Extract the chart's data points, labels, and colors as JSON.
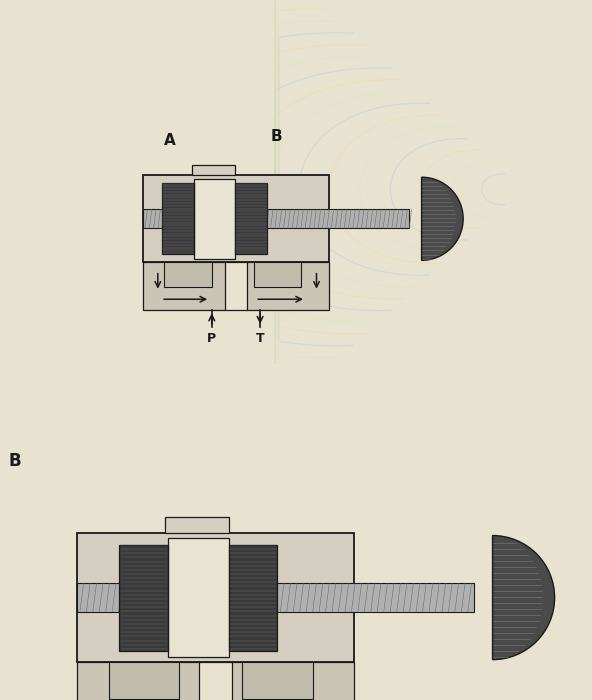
{
  "bg_color": "#e8e2d0",
  "line_color": "#1a1a1a",
  "dark_spool": "#3a3a3a",
  "shaft_color": "#999999",
  "body_fill": "#d4cfc0",
  "gallery_fill": "#cac5b5",
  "knob_fill": "#555555",
  "spring_color": "#222222",
  "label_A": "A",
  "label_B": "B",
  "label_P": "P",
  "label_T": "T",
  "label_left2": "B",
  "figsize": [
    5.92,
    7.0
  ],
  "dpi": 100,
  "wave_colors": [
    "#a8c8e8",
    "#d4e8c0",
    "#f0d8a0"
  ],
  "wave_alpha": 0.35
}
